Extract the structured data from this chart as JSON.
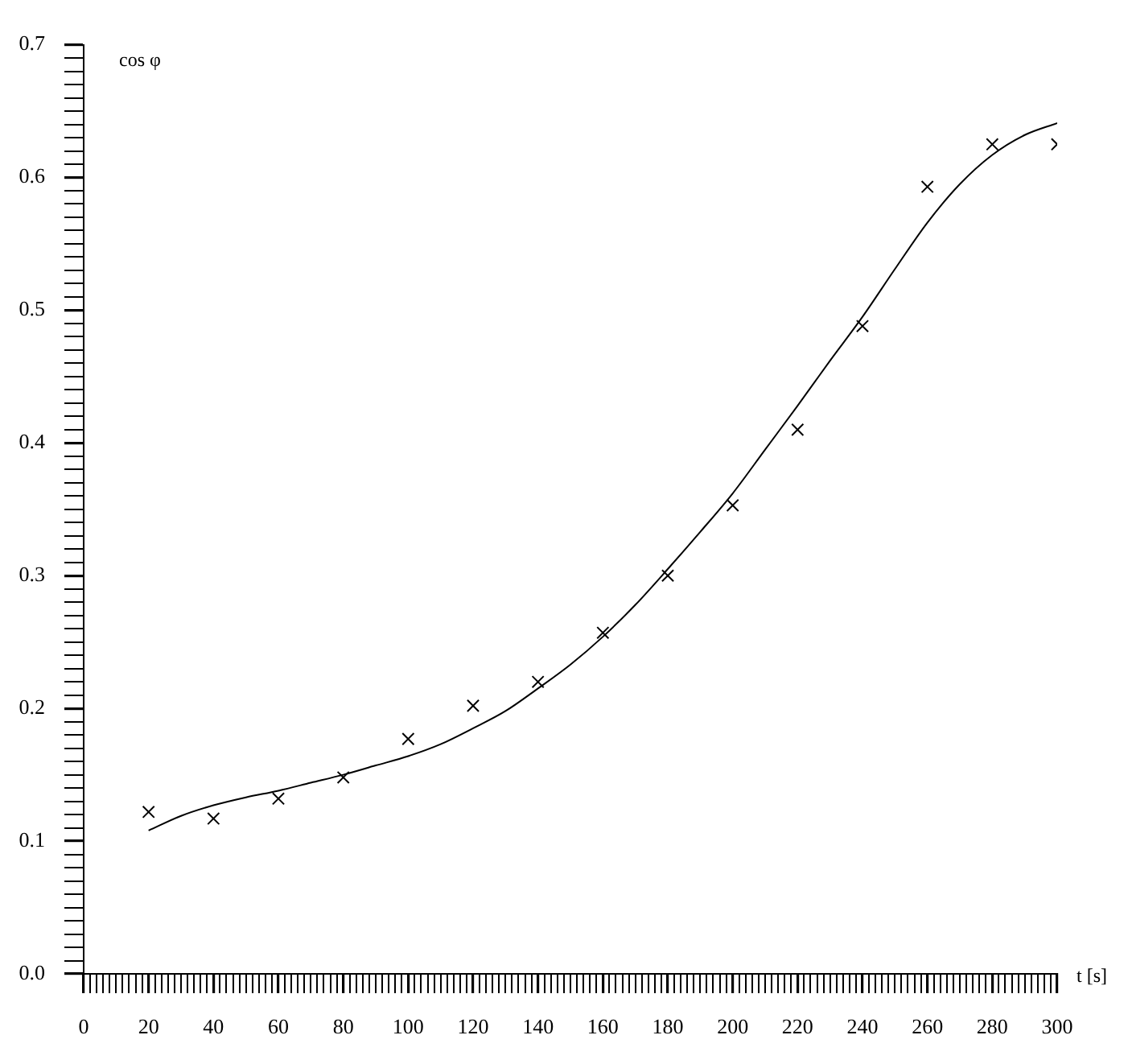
{
  "chart_data": {
    "type": "scatter",
    "xlabel": "t [s]",
    "ylabel": "cos φ",
    "xlim": [
      0,
      300
    ],
    "ylim": [
      0,
      0.7
    ],
    "xticks": [
      0,
      {
        "value": 2,
        "label": null
      },
      {
        "value": 4,
        "label": null
      },
      {
        "value": 6,
        "label": null
      },
      {
        "value": 8,
        "label": null
      },
      {
        "value": 10,
        "label": null
      },
      {
        "value": 12,
        "label": null
      },
      {
        "value": 14,
        "label": null
      },
      {
        "value": 16,
        "label": null
      },
      {
        "value": 18,
        "label": null
      },
      20,
      {
        "value": 22,
        "label": null
      },
      {
        "value": 24,
        "label": null
      },
      {
        "value": 26,
        "label": null
      },
      {
        "value": 28,
        "label": null
      },
      {
        "value": 30,
        "label": null
      },
      {
        "value": 32,
        "label": null
      },
      {
        "value": 34,
        "label": null
      },
      {
        "value": 36,
        "label": null
      },
      {
        "value": 38,
        "label": null
      },
      40,
      {
        "value": 42,
        "label": null
      },
      {
        "value": 44,
        "label": null
      },
      {
        "value": 46,
        "label": null
      },
      {
        "value": 48,
        "label": null
      },
      {
        "value": 50,
        "label": null
      },
      {
        "value": 52,
        "label": null
      },
      {
        "value": 54,
        "label": null
      },
      {
        "value": 56,
        "label": null
      },
      {
        "value": 58,
        "label": null
      },
      60,
      {
        "value": 62,
        "label": null
      },
      {
        "value": 64,
        "label": null
      },
      {
        "value": 66,
        "label": null
      },
      {
        "value": 68,
        "label": null
      },
      {
        "value": 70,
        "label": null
      },
      {
        "value": 72,
        "label": null
      },
      {
        "value": 74,
        "label": null
      },
      {
        "value": 76,
        "label": null
      },
      {
        "value": 78,
        "label": null
      },
      80,
      {
        "value": 82,
        "label": null
      },
      {
        "value": 84,
        "label": null
      },
      {
        "value": 86,
        "label": null
      },
      {
        "value": 88,
        "label": null
      },
      {
        "value": 90,
        "label": null
      },
      {
        "value": 92,
        "label": null
      },
      {
        "value": 94,
        "label": null
      },
      {
        "value": 96,
        "label": null
      },
      {
        "value": 98,
        "label": null
      },
      100,
      {
        "value": 102,
        "label": null
      },
      {
        "value": 104,
        "label": null
      },
      {
        "value": 106,
        "label": null
      },
      {
        "value": 108,
        "label": null
      },
      {
        "value": 110,
        "label": null
      },
      {
        "value": 112,
        "label": null
      },
      {
        "value": 114,
        "label": null
      },
      {
        "value": 116,
        "label": null
      },
      {
        "value": 118,
        "label": null
      },
      120,
      {
        "value": 122,
        "label": null
      },
      {
        "value": 124,
        "label": null
      },
      {
        "value": 126,
        "label": null
      },
      {
        "value": 128,
        "label": null
      },
      {
        "value": 130,
        "label": null
      },
      {
        "value": 132,
        "label": null
      },
      {
        "value": 134,
        "label": null
      },
      {
        "value": 136,
        "label": null
      },
      {
        "value": 138,
        "label": null
      },
      140,
      {
        "value": 142,
        "label": null
      },
      {
        "value": 144,
        "label": null
      },
      {
        "value": 146,
        "label": null
      },
      {
        "value": 148,
        "label": null
      },
      {
        "value": 150,
        "label": null
      },
      {
        "value": 152,
        "label": null
      },
      {
        "value": 154,
        "label": null
      },
      {
        "value": 156,
        "label": null
      },
      {
        "value": 158,
        "label": null
      },
      160,
      {
        "value": 162,
        "label": null
      },
      {
        "value": 164,
        "label": null
      },
      {
        "value": 166,
        "label": null
      },
      {
        "value": 168,
        "label": null
      },
      {
        "value": 170,
        "label": null
      },
      {
        "value": 172,
        "label": null
      },
      {
        "value": 174,
        "label": null
      },
      {
        "value": 176,
        "label": null
      },
      {
        "value": 178,
        "label": null
      },
      180,
      {
        "value": 182,
        "label": null
      },
      {
        "value": 184,
        "label": null
      },
      {
        "value": 186,
        "label": null
      },
      {
        "value": 188,
        "label": null
      },
      {
        "value": 190,
        "label": null
      },
      {
        "value": 192,
        "label": null
      },
      {
        "value": 194,
        "label": null
      },
      {
        "value": 196,
        "label": null
      },
      {
        "value": 198,
        "label": null
      },
      200,
      {
        "value": 202,
        "label": null
      },
      {
        "value": 204,
        "label": null
      },
      {
        "value": 206,
        "label": null
      },
      {
        "value": 208,
        "label": null
      },
      {
        "value": 210,
        "label": null
      },
      {
        "value": 212,
        "label": null
      },
      {
        "value": 214,
        "label": null
      },
      {
        "value": 216,
        "label": null
      },
      {
        "value": 218,
        "label": null
      },
      220,
      {
        "value": 222,
        "label": null
      },
      {
        "value": 224,
        "label": null
      },
      {
        "value": 226,
        "label": null
      },
      {
        "value": 228,
        "label": null
      },
      {
        "value": 230,
        "label": null
      },
      {
        "value": 232,
        "label": null
      },
      {
        "value": 234,
        "label": null
      },
      {
        "value": 236,
        "label": null
      },
      {
        "value": 238,
        "label": null
      },
      240,
      {
        "value": 242,
        "label": null
      },
      {
        "value": 244,
        "label": null
      },
      {
        "value": 246,
        "label": null
      },
      {
        "value": 248,
        "label": null
      },
      {
        "value": 250,
        "label": null
      },
      {
        "value": 252,
        "label": null
      },
      {
        "value": 254,
        "label": null
      },
      {
        "value": 256,
        "label": null
      },
      {
        "value": 258,
        "label": null
      },
      260,
      {
        "value": 262,
        "label": null
      },
      {
        "value": 264,
        "label": null
      },
      {
        "value": 266,
        "label": null
      },
      {
        "value": 268,
        "label": null
      },
      {
        "value": 270,
        "label": null
      },
      {
        "value": 272,
        "label": null
      },
      {
        "value": 274,
        "label": null
      },
      {
        "value": 276,
        "label": null
      },
      {
        "value": 278,
        "label": null
      },
      280,
      {
        "value": 282,
        "label": null
      },
      {
        "value": 284,
        "label": null
      },
      {
        "value": 286,
        "label": null
      },
      {
        "value": 288,
        "label": null
      },
      {
        "value": 290,
        "label": null
      },
      {
        "value": 292,
        "label": null
      },
      {
        "value": 294,
        "label": null
      },
      {
        "value": 296,
        "label": null
      },
      {
        "value": 298,
        "label": null
      },
      300
    ],
    "yticks": [
      {
        "value": 0,
        "label": "0.0"
      },
      {
        "value": 0.01,
        "label": null
      },
      {
        "value": 0.02,
        "label": null
      },
      {
        "value": 0.03,
        "label": null
      },
      {
        "value": 0.04,
        "label": null
      },
      {
        "value": 0.05,
        "label": null
      },
      {
        "value": 0.06,
        "label": null
      },
      {
        "value": 0.07,
        "label": null
      },
      {
        "value": 0.08,
        "label": null
      },
      {
        "value": 0.09,
        "label": null
      },
      0.1,
      {
        "value": 0.11,
        "label": null
      },
      {
        "value": 0.12,
        "label": null
      },
      {
        "value": 0.13,
        "label": null
      },
      {
        "value": 0.14,
        "label": null
      },
      {
        "value": 0.15,
        "label": null
      },
      {
        "value": 0.16,
        "label": null
      },
      {
        "value": 0.17,
        "label": null
      },
      {
        "value": 0.18,
        "label": null
      },
      {
        "value": 0.19,
        "label": null
      },
      0.2,
      {
        "value": 0.21,
        "label": null
      },
      {
        "value": 0.22,
        "label": null
      },
      {
        "value": 0.23,
        "label": null
      },
      {
        "value": 0.24,
        "label": null
      },
      {
        "value": 0.25,
        "label": null
      },
      {
        "value": 0.26,
        "label": null
      },
      {
        "value": 0.27,
        "label": null
      },
      {
        "value": 0.28,
        "label": null
      },
      {
        "value": 0.29,
        "label": null
      },
      0.3,
      {
        "value": 0.31,
        "label": null
      },
      {
        "value": 0.32,
        "label": null
      },
      {
        "value": 0.33,
        "label": null
      },
      {
        "value": 0.34,
        "label": null
      },
      {
        "value": 0.35,
        "label": null
      },
      {
        "value": 0.36,
        "label": null
      },
      {
        "value": 0.37,
        "label": null
      },
      {
        "value": 0.38,
        "label": null
      },
      {
        "value": 0.39,
        "label": null
      },
      0.4,
      {
        "value": 0.41,
        "label": null
      },
      {
        "value": 0.42,
        "label": null
      },
      {
        "value": 0.43,
        "label": null
      },
      {
        "value": 0.44,
        "label": null
      },
      {
        "value": 0.45,
        "label": null
      },
      {
        "value": 0.46,
        "label": null
      },
      {
        "value": 0.47,
        "label": null
      },
      {
        "value": 0.48,
        "label": null
      },
      {
        "value": 0.49,
        "label": null
      },
      0.5,
      {
        "value": 0.51,
        "label": null
      },
      {
        "value": 0.52,
        "label": null
      },
      {
        "value": 0.53,
        "label": null
      },
      {
        "value": 0.54,
        "label": null
      },
      {
        "value": 0.55,
        "label": null
      },
      {
        "value": 0.56,
        "label": null
      },
      {
        "value": 0.57,
        "label": null
      },
      {
        "value": 0.58,
        "label": null
      },
      {
        "value": 0.59,
        "label": null
      },
      0.6,
      {
        "value": 0.61,
        "label": null
      },
      {
        "value": 0.62,
        "label": null
      },
      {
        "value": 0.63,
        "label": null
      },
      {
        "value": 0.64,
        "label": null
      },
      {
        "value": 0.65,
        "label": null
      },
      {
        "value": 0.66,
        "label": null
      },
      {
        "value": 0.67,
        "label": null
      },
      {
        "value": 0.68,
        "label": null
      },
      {
        "value": 0.69,
        "label": null
      },
      0.7
    ],
    "series": [
      {
        "type": "scatter",
        "color": "#000000",
        "marker": "cross",
        "x": [
          20,
          40,
          60,
          80,
          100,
          120,
          140,
          160,
          180,
          200,
          220,
          240,
          260,
          280,
          300
        ],
        "values": [
          0.122,
          0.117,
          0.132,
          0.148,
          0.177,
          0.202,
          0.22,
          0.257,
          0.3,
          0.353,
          0.41,
          0.488,
          0.593,
          0.625,
          0.625
        ]
      },
      {
        "type": "line",
        "color": "#000000",
        "marker": "none",
        "x": [
          20,
          30,
          40,
          50,
          60,
          70,
          80,
          90,
          100,
          110,
          120,
          130,
          140,
          150,
          160,
          170,
          180,
          190,
          200,
          210,
          220,
          230,
          240,
          250,
          260,
          270,
          280,
          290,
          300
        ],
        "values": [
          0.108,
          0.119,
          0.127,
          0.133,
          0.138,
          0.144,
          0.15,
          0.157,
          0.164,
          0.173,
          0.185,
          0.198,
          0.215,
          0.233,
          0.254,
          0.278,
          0.305,
          0.333,
          0.362,
          0.395,
          0.428,
          0.462,
          0.495,
          0.531,
          0.566,
          0.595,
          0.617,
          0.632,
          0.641
        ]
      }
    ],
    "legend": false,
    "grid": false
  }
}
